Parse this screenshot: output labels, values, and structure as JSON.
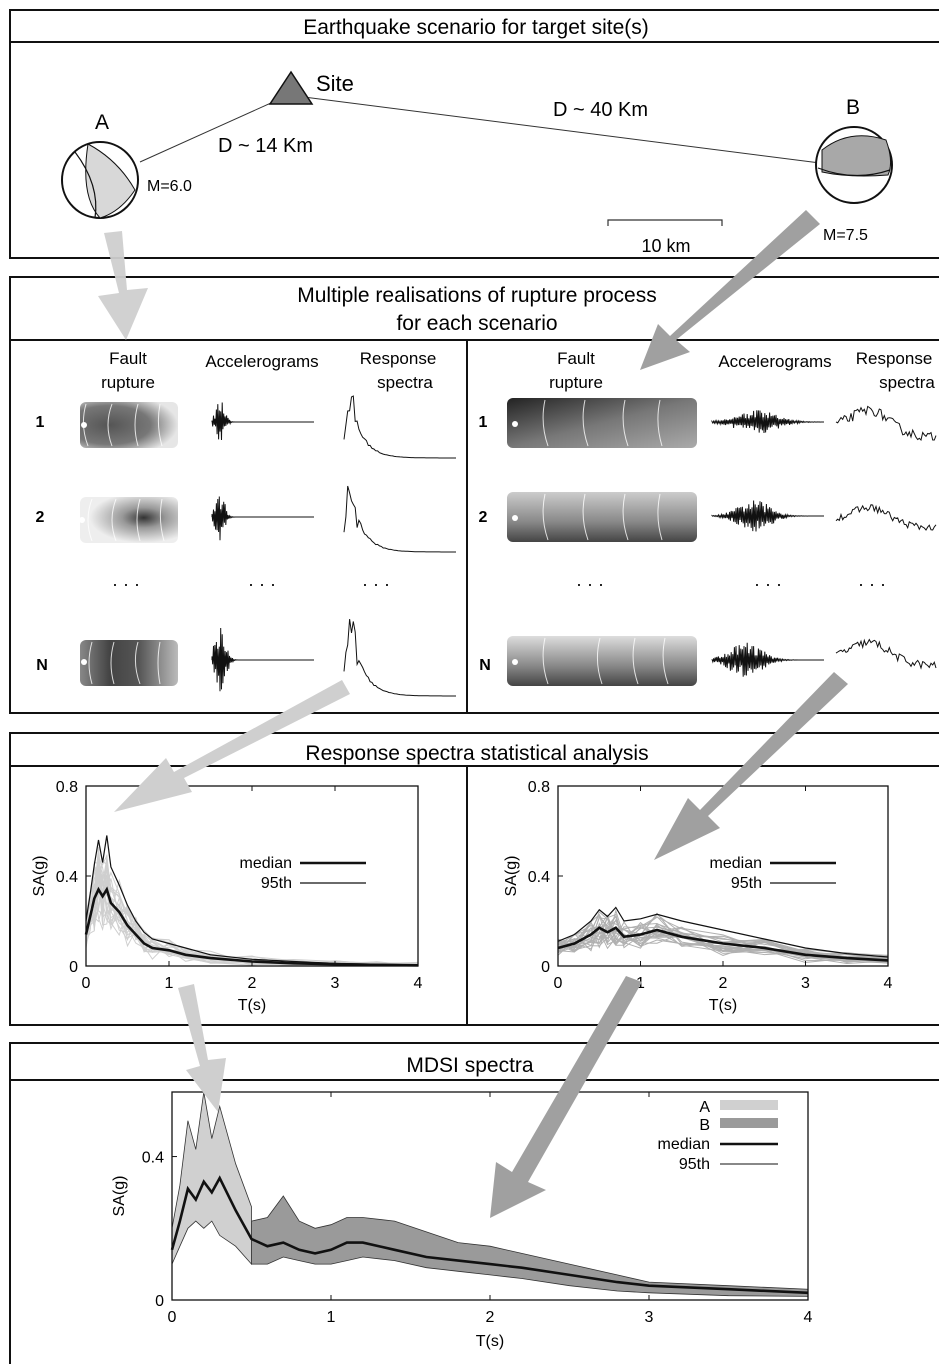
{
  "scenario": {
    "title": "Earthquake scenario for target site(s)",
    "site_label": "Site",
    "event_a": {
      "label": "A",
      "magnitude": "M=6.0",
      "distance": "D ~ 14 Km"
    },
    "event_b": {
      "label": "B",
      "magnitude": "M=7.5",
      "distance": "D ~ 40 Km"
    },
    "scale_bar": "10 km"
  },
  "realisations": {
    "title_line1": "Multiple realisations of rupture process",
    "title_line2": "for each scenario",
    "headers_a": {
      "fault1": "Fault",
      "fault2": "rupture",
      "accel": "Accelerograms",
      "resp": "Response",
      "resp2": "spectra"
    },
    "headers_b": {
      "fault1": "Fault",
      "fault2": "rupture",
      "accel": "Accelerograms",
      "resp": "Response",
      "resp2": "spectra"
    },
    "rows": [
      "1",
      "2",
      "N"
    ],
    "ellipsis": "· · ·"
  },
  "stats": {
    "title": "Response spectra statistical analysis"
  },
  "mdsi": {
    "title": "MDSI spectra"
  },
  "colors": {
    "scenario_a": "#d0d0d0",
    "scenario_b": "#9a9a9a",
    "median": "#111111",
    "arrow_a": "#cfcfcf",
    "arrow_b": "#a0a0a0"
  },
  "chart_data": [
    {
      "type": "line",
      "panel": "scenario-a",
      "xlabel": "T(s)",
      "ylabel": "SA(g)",
      "xlim": [
        0,
        4
      ],
      "ylim": [
        0,
        0.8
      ],
      "xticks": [
        "0",
        "1",
        "2",
        "3",
        "4"
      ],
      "yticks": [
        "0",
        "0.4",
        "0.8"
      ],
      "legend": {
        "position": "right",
        "entries": [
          "median",
          "95th"
        ]
      },
      "series": [
        {
          "name": "median",
          "x": [
            0,
            0.05,
            0.1,
            0.15,
            0.2,
            0.25,
            0.3,
            0.4,
            0.5,
            0.6,
            0.7,
            0.8,
            1.0,
            1.2,
            1.5,
            2.0,
            2.5,
            3.0,
            3.5,
            4.0
          ],
          "y": [
            0.14,
            0.22,
            0.3,
            0.34,
            0.31,
            0.34,
            0.28,
            0.24,
            0.18,
            0.14,
            0.1,
            0.08,
            0.07,
            0.05,
            0.035,
            0.02,
            0.012,
            0.008,
            0.005,
            0.003
          ]
        },
        {
          "name": "95th",
          "x": [
            0,
            0.05,
            0.1,
            0.15,
            0.2,
            0.25,
            0.3,
            0.4,
            0.5,
            0.6,
            0.7,
            0.8,
            1.0,
            1.2,
            1.5,
            2.0,
            2.5,
            3.0,
            3.5,
            4.0
          ],
          "y": [
            0.2,
            0.32,
            0.45,
            0.56,
            0.46,
            0.58,
            0.44,
            0.36,
            0.27,
            0.2,
            0.15,
            0.12,
            0.1,
            0.08,
            0.05,
            0.03,
            0.02,
            0.012,
            0.008,
            0.005
          ]
        }
      ]
    },
    {
      "type": "line",
      "panel": "scenario-b",
      "xlabel": "T(s)",
      "ylabel": "SA(g)",
      "xlim": [
        0,
        4
      ],
      "ylim": [
        0,
        0.8
      ],
      "xticks": [
        "0",
        "1",
        "2",
        "3",
        "4"
      ],
      "yticks": [
        "0",
        "0.4",
        "0.8"
      ],
      "legend": {
        "position": "right",
        "entries": [
          "median",
          "95th"
        ]
      },
      "series": [
        {
          "name": "median",
          "x": [
            0,
            0.2,
            0.4,
            0.5,
            0.6,
            0.7,
            0.8,
            1.0,
            1.2,
            1.5,
            2.0,
            2.5,
            3.0,
            3.5,
            4.0
          ],
          "y": [
            0.08,
            0.1,
            0.14,
            0.17,
            0.15,
            0.17,
            0.13,
            0.14,
            0.16,
            0.13,
            0.1,
            0.08,
            0.05,
            0.035,
            0.025
          ]
        },
        {
          "name": "95th",
          "x": [
            0,
            0.2,
            0.4,
            0.5,
            0.6,
            0.7,
            0.8,
            1.0,
            1.2,
            1.5,
            2.0,
            2.5,
            3.0,
            3.5,
            4.0
          ],
          "y": [
            0.11,
            0.14,
            0.2,
            0.25,
            0.22,
            0.26,
            0.2,
            0.21,
            0.23,
            0.2,
            0.16,
            0.12,
            0.08,
            0.055,
            0.04
          ]
        }
      ]
    },
    {
      "type": "area",
      "panel": "mdsi",
      "xlabel": "T(s)",
      "ylabel": "SA(g)",
      "xlim": [
        0,
        4
      ],
      "ylim": [
        0,
        0.58
      ],
      "xticks": [
        "0",
        "1",
        "2",
        "3",
        "4"
      ],
      "yticks": [
        "0",
        "0.4"
      ],
      "legend": {
        "position": "top-right",
        "entries": [
          "A",
          "B",
          "median",
          "95th"
        ]
      },
      "series": [
        {
          "name": "A",
          "x": [
            0,
            0.05,
            0.1,
            0.15,
            0.2,
            0.25,
            0.3,
            0.4,
            0.5
          ],
          "lower": [
            0.1,
            0.15,
            0.2,
            0.22,
            0.2,
            0.22,
            0.18,
            0.15,
            0.1
          ],
          "upper": [
            0.2,
            0.32,
            0.5,
            0.42,
            0.58,
            0.45,
            0.54,
            0.38,
            0.26
          ]
        },
        {
          "name": "B",
          "x": [
            0.5,
            0.6,
            0.7,
            0.8,
            0.9,
            1.0,
            1.1,
            1.2,
            1.4,
            1.6,
            1.8,
            2.0,
            2.2,
            2.5,
            2.8,
            3.0,
            3.5,
            4.0
          ],
          "lower": [
            0.1,
            0.1,
            0.12,
            0.11,
            0.1,
            0.1,
            0.11,
            0.12,
            0.11,
            0.09,
            0.08,
            0.07,
            0.06,
            0.04,
            0.025,
            0.02,
            0.012,
            0.01
          ],
          "upper": [
            0.22,
            0.23,
            0.29,
            0.22,
            0.2,
            0.21,
            0.23,
            0.23,
            0.22,
            0.19,
            0.16,
            0.15,
            0.13,
            0.1,
            0.07,
            0.05,
            0.04,
            0.03
          ]
        },
        {
          "name": "median",
          "x": [
            0,
            0.05,
            0.1,
            0.15,
            0.2,
            0.25,
            0.3,
            0.4,
            0.5,
            0.6,
            0.7,
            0.8,
            0.9,
            1.0,
            1.1,
            1.2,
            1.4,
            1.6,
            1.8,
            2.0,
            2.2,
            2.5,
            2.8,
            3.0,
            3.5,
            4.0
          ],
          "y": [
            0.14,
            0.22,
            0.31,
            0.28,
            0.33,
            0.3,
            0.34,
            0.25,
            0.17,
            0.15,
            0.16,
            0.14,
            0.13,
            0.14,
            0.16,
            0.16,
            0.14,
            0.12,
            0.11,
            0.1,
            0.09,
            0.07,
            0.05,
            0.04,
            0.03,
            0.02
          ]
        }
      ]
    }
  ]
}
